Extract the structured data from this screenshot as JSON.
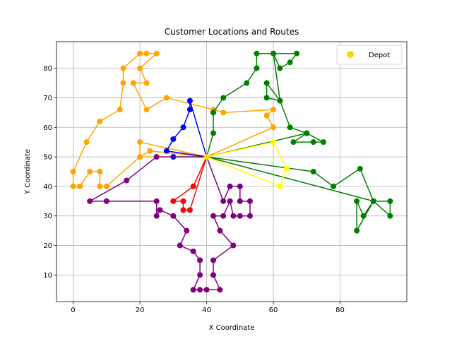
{
  "chart_data": {
    "type": "line",
    "title": "Customer Locations and Routes",
    "xlabel": "X Coordinate",
    "ylabel": "Y Coordinate",
    "xlim": [
      -5,
      100
    ],
    "ylim": [
      1,
      89
    ],
    "xticks": [
      0,
      20,
      40,
      60,
      80
    ],
    "yticks": [
      10,
      20,
      30,
      40,
      50,
      60,
      70,
      80
    ],
    "grid": true,
    "legend_position": "top-right",
    "depot": {
      "name": "Depot",
      "x": 40,
      "y": 50,
      "color": "#FFD700"
    },
    "routes": [
      {
        "color": "#FFA500",
        "points": [
          [
            40,
            50
          ],
          [
            20,
            55
          ],
          [
            20,
            50
          ],
          [
            10,
            40
          ],
          [
            8,
            40
          ],
          [
            8,
            45
          ],
          [
            5,
            45
          ],
          [
            2,
            40
          ],
          [
            0,
            40
          ],
          [
            0,
            45
          ],
          [
            4,
            55
          ],
          [
            8,
            62
          ],
          [
            14,
            66
          ],
          [
            15,
            75
          ],
          [
            15,
            80
          ],
          [
            20,
            85
          ],
          [
            22,
            85
          ],
          [
            25,
            85
          ],
          [
            20,
            80
          ],
          [
            22,
            75
          ],
          [
            18,
            75
          ],
          [
            22,
            66
          ],
          [
            28,
            70
          ],
          [
            42,
            66
          ],
          [
            45,
            65
          ],
          [
            60,
            66
          ],
          [
            58,
            64
          ],
          [
            60,
            60
          ],
          [
            40,
            50
          ]
        ]
      },
      {
        "color": "#FFA500",
        "points": [
          [
            40,
            50
          ],
          [
            23,
            52
          ],
          [
            20,
            50
          ],
          [
            40,
            50
          ]
        ]
      },
      {
        "color": "#0000FF",
        "points": [
          [
            40,
            50
          ],
          [
            28,
            52
          ],
          [
            30,
            56
          ],
          [
            33,
            60
          ],
          [
            35,
            66
          ],
          [
            35,
            69
          ],
          [
            40,
            50
          ],
          [
            30,
            50
          ],
          [
            40,
            50
          ]
        ]
      },
      {
        "color": "#008000",
        "points": [
          [
            40,
            50
          ],
          [
            42,
            58
          ],
          [
            42,
            65
          ],
          [
            45,
            70
          ],
          [
            52,
            75
          ],
          [
            55,
            80
          ],
          [
            55,
            85
          ],
          [
            60,
            85
          ],
          [
            62,
            80
          ],
          [
            65,
            82
          ],
          [
            67,
            85
          ],
          [
            60,
            85
          ],
          [
            62,
            69
          ],
          [
            58,
            75
          ],
          [
            58,
            70
          ],
          [
            62,
            69
          ],
          [
            65,
            60
          ],
          [
            70,
            58
          ],
          [
            66,
            55
          ],
          [
            72,
            55
          ],
          [
            75,
            55
          ],
          [
            70,
            58
          ],
          [
            40,
            50
          ]
        ]
      },
      {
        "color": "#008000",
        "points": [
          [
            40,
            50
          ],
          [
            72,
            45
          ],
          [
            78,
            40
          ],
          [
            86,
            46
          ],
          [
            90,
            35
          ],
          [
            95,
            35
          ],
          [
            95,
            30
          ],
          [
            90,
            35
          ],
          [
            85,
            25
          ],
          [
            85,
            35
          ],
          [
            87,
            30
          ],
          [
            90,
            35
          ],
          [
            40,
            50
          ]
        ]
      },
      {
        "color": "#FFFF00",
        "points": [
          [
            40,
            50
          ],
          [
            60,
            55
          ],
          [
            64,
            46
          ],
          [
            62,
            40
          ],
          [
            40,
            50
          ],
          [
            60,
            55
          ],
          [
            40,
            50
          ]
        ]
      },
      {
        "color": "#FF0000",
        "points": [
          [
            40,
            50
          ],
          [
            36,
            40
          ],
          [
            30,
            35
          ],
          [
            33,
            35
          ],
          [
            33,
            32
          ],
          [
            35,
            32
          ],
          [
            40,
            50
          ]
        ]
      },
      {
        "color": "#800080",
        "points": [
          [
            40,
            50
          ],
          [
            25,
            50
          ],
          [
            16,
            42
          ],
          [
            5,
            35
          ],
          [
            10,
            35
          ],
          [
            25,
            35
          ],
          [
            25,
            30
          ],
          [
            26,
            32
          ],
          [
            30,
            30
          ],
          [
            34,
            25
          ],
          [
            32,
            20
          ],
          [
            36,
            18
          ],
          [
            38,
            15
          ],
          [
            38,
            10
          ],
          [
            36,
            5
          ],
          [
            38,
            5
          ],
          [
            40,
            5
          ],
          [
            44,
            5
          ],
          [
            42,
            10
          ],
          [
            42,
            15
          ],
          [
            48,
            20
          ],
          [
            44,
            25
          ],
          [
            42,
            30
          ],
          [
            45,
            30
          ],
          [
            47,
            35
          ],
          [
            48,
            30
          ],
          [
            50,
            30
          ],
          [
            53,
            30
          ],
          [
            53,
            35
          ],
          [
            50,
            35
          ],
          [
            50,
            40
          ],
          [
            47,
            40
          ],
          [
            45,
            35
          ],
          [
            40,
            50
          ]
        ]
      }
    ]
  }
}
